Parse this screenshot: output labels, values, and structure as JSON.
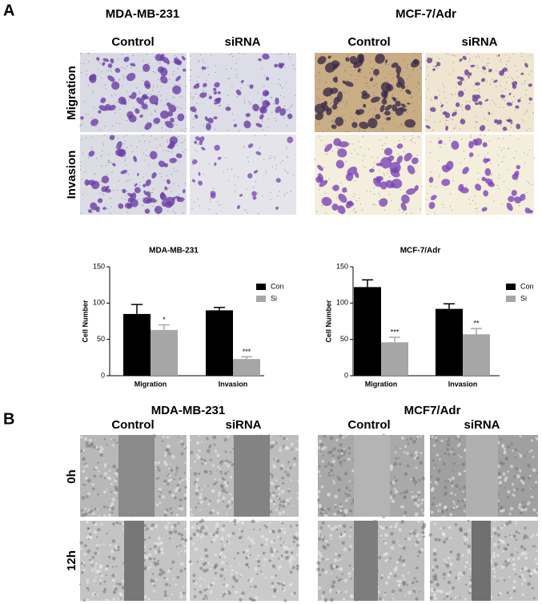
{
  "panel_a": {
    "label": "A",
    "groups": [
      {
        "title": "MDA-MB-231",
        "columns": [
          "Control",
          "siRNA"
        ]
      },
      {
        "title": "MCF-7/Adr",
        "columns": [
          "Control",
          "siRNA"
        ]
      }
    ],
    "rows": [
      "Migration",
      "Invasion"
    ]
  },
  "chart_data": [
    {
      "type": "bar",
      "title": "MDA-MB-231",
      "y_label": "Cell Number",
      "categories": [
        "Migration",
        "Invasion"
      ],
      "series": [
        {
          "name": "Con",
          "color": "#000000",
          "values": [
            85,
            90
          ],
          "errors": [
            13,
            4
          ]
        },
        {
          "name": "Si",
          "color": "#a6a6a6",
          "values": [
            63,
            23
          ],
          "errors": [
            7,
            3
          ],
          "significance": [
            "*",
            "***"
          ]
        }
      ],
      "ylim": [
        0,
        150
      ],
      "yticks": [
        0,
        50,
        100,
        150
      ],
      "legend": "upper right"
    },
    {
      "type": "bar",
      "title": "MCF-7/Adr",
      "y_label": "Cell Number",
      "categories": [
        "Migration",
        "Invasion"
      ],
      "series": [
        {
          "name": "Con",
          "color": "#000000",
          "values": [
            122,
            92
          ],
          "errors": [
            10,
            7
          ]
        },
        {
          "name": "Si",
          "color": "#a6a6a6",
          "values": [
            46,
            57
          ],
          "errors": [
            7,
            8
          ],
          "significance": [
            "***",
            "**"
          ]
        }
      ],
      "ylim": [
        0,
        150
      ],
      "yticks": [
        0,
        50,
        100,
        150
      ],
      "legend": "upper right"
    }
  ],
  "panel_b": {
    "label": "B",
    "groups": [
      {
        "title": "MDA-MB-231",
        "columns": [
          "Control",
          "siRNA"
        ]
      },
      {
        "title": "MCF7/Adr",
        "columns": [
          "Control",
          "siRNA"
        ]
      }
    ],
    "rows": [
      "0h",
      "12h"
    ]
  }
}
